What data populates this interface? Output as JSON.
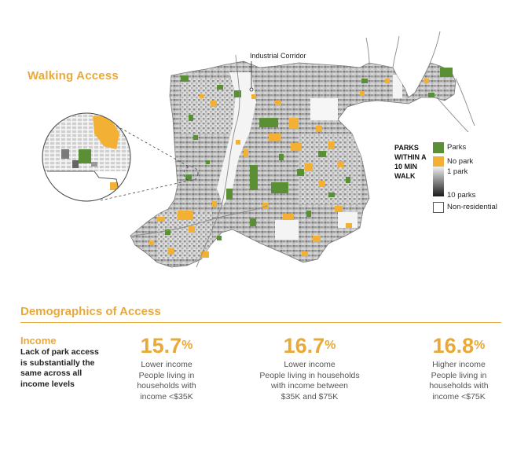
{
  "map": {
    "title": "Walking Access",
    "annotation": "Industrial Corridor",
    "legend": {
      "title": "PARKS WITHIN A 10 MIN WALK",
      "items": [
        {
          "label": "Parks",
          "color": "#5a8f35"
        },
        {
          "label": "No park",
          "color": "#f2b135"
        },
        {
          "label": "1 park",
          "color": "#e6e6e6"
        },
        {
          "label": "10 parks",
          "color": "#1a1a1a"
        },
        {
          "label": "Non-residential",
          "color": "#ffffff"
        }
      ]
    }
  },
  "demographics": {
    "title": "Demographics of Access",
    "category": "Income",
    "description": "Lack of park access is substantially the same across all income levels",
    "stats": [
      {
        "value": "15.7",
        "unit": "%",
        "line1": "Lower income",
        "line2": "People living in",
        "line3": "households with",
        "line4": "income <$35K"
      },
      {
        "value": "16.7",
        "unit": "%",
        "line1": "Lower income",
        "line2": "People living in households",
        "line3": "with income between",
        "line4": "$35K and $75K"
      },
      {
        "value": "16.8",
        "unit": "%",
        "line1": "Higher income",
        "line2": "People living in",
        "line3": "households with",
        "line4": "income <$75K"
      }
    ]
  }
}
